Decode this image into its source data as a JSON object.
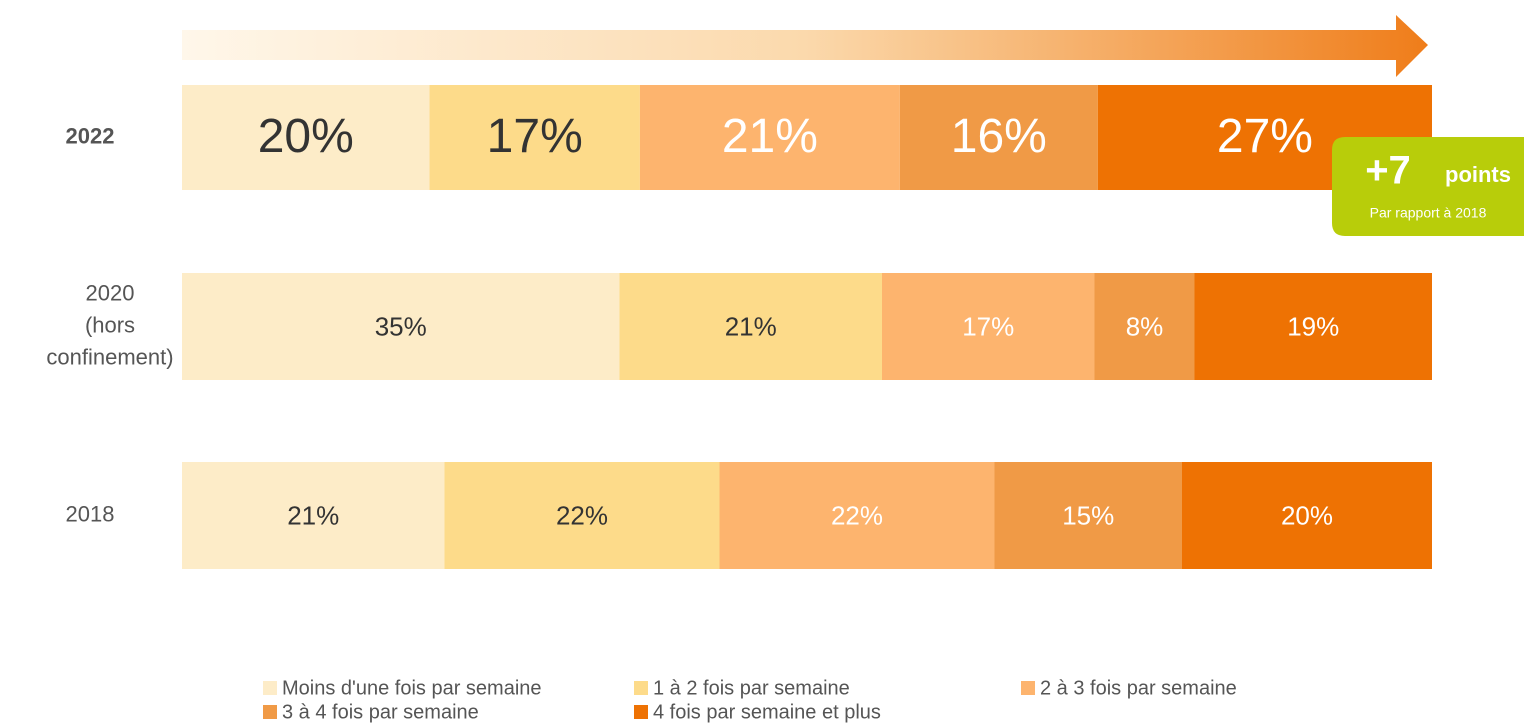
{
  "chart_data": {
    "type": "stacked_barh",
    "categories": [
      "2022",
      "2020\n(hors\nconfinement)",
      "2018"
    ],
    "series": [
      {
        "name": "Moins d'une fois par semaine",
        "color": "#fdecc8",
        "values": [
          20,
          35,
          21
        ],
        "value_labels": [
          "20%",
          "35%",
          "21%"
        ]
      },
      {
        "name": "1 à 2 fois par semaine",
        "color": "#fddb8a",
        "values": [
          17,
          21,
          22
        ],
        "value_labels": [
          "17%",
          "21%",
          "22%"
        ]
      },
      {
        "name": "2 à 3 fois par semaine",
        "color": "#fdb46e",
        "values": [
          21,
          17,
          22
        ],
        "value_labels": [
          "21%",
          "17%",
          "22%"
        ]
      },
      {
        "name": "3 à 4 fois par semaine",
        "color": "#f09a46",
        "values": [
          16,
          8,
          15
        ],
        "value_labels": [
          "16%",
          "8%",
          "15%"
        ]
      },
      {
        "name": "4 fois par semaine et plus",
        "color": "#ee7203",
        "values": [
          27,
          19,
          20
        ],
        "value_labels": [
          "27%",
          "19%",
          "20%"
        ]
      }
    ],
    "annotation": {
      "value": "+7",
      "unit": "points",
      "note": "Par rapport à 2018",
      "color": "#b8cd0a"
    },
    "legend": "bottom"
  }
}
